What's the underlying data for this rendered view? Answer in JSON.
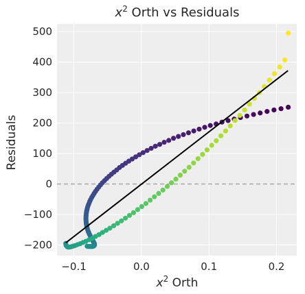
{
  "chart_data": {
    "type": "scatter",
    "title": "$x^2$ Orth vs Residuals",
    "title_parts": {
      "base": "x",
      "sup": "2",
      "rest": " Orth vs Residuals"
    },
    "xlabel": "$x^2$ Orth",
    "xlabel_parts": {
      "base": "x",
      "sup": "2",
      "rest": " Orth"
    },
    "ylabel": "Residuals",
    "xlim": [
      -0.125,
      0.23
    ],
    "ylim": [
      -235,
      525
    ],
    "xticks": [
      -0.1,
      0.0,
      0.1,
      0.2
    ],
    "xtick_labels": [
      "−0.1",
      "0.0",
      "0.1",
      "0.2"
    ],
    "yticks": [
      -200,
      -100,
      0,
      100,
      200,
      300,
      400,
      500
    ],
    "ytick_labels": [
      "−200",
      "−100",
      "0",
      "100",
      "200",
      "300",
      "400",
      "500"
    ],
    "grid": true,
    "colormap": "viridis",
    "series": [
      {
        "marker": "circle",
        "x": [
          0.2174,
          0.2067,
          0.1963,
          0.186,
          0.1758,
          0.166,
          0.1563,
          0.1467,
          0.1374,
          0.1283,
          0.1193,
          0.1106,
          0.102,
          0.0937,
          0.0855,
          0.0775,
          0.0697,
          0.0621,
          0.0547,
          0.0475,
          0.0405,
          0.0337,
          0.0271,
          0.0206,
          0.0144,
          0.0084,
          0.0025,
          -0.0031,
          -0.0085,
          -0.0137,
          -0.0187,
          -0.0235,
          -0.0281,
          -0.0325,
          -0.0367,
          -0.0407,
          -0.0445,
          -0.0481,
          -0.0515,
          -0.0547,
          -0.0578,
          -0.0606,
          -0.0632,
          -0.0657,
          -0.0679,
          -0.07,
          -0.0719,
          -0.0736,
          -0.0752,
          -0.0765,
          -0.0777,
          -0.0788,
          -0.0797,
          -0.0804,
          -0.081,
          -0.0815,
          -0.0818,
          -0.082,
          -0.0821,
          -0.0821,
          -0.082,
          -0.0818,
          -0.0816,
          -0.0812,
          -0.0808,
          -0.0803,
          -0.0798,
          -0.0792,
          -0.0786,
          -0.0779,
          -0.0772,
          -0.0765,
          -0.0758,
          -0.0751,
          -0.0744,
          -0.0737,
          -0.0731,
          -0.0725,
          -0.0719,
          -0.0714,
          -0.0709,
          -0.0705,
          -0.0701,
          -0.0698,
          -0.0696,
          -0.0695,
          -0.0695,
          -0.0696,
          -0.0698,
          -0.0701,
          -0.0705,
          -0.0711,
          -0.0717,
          -0.0725,
          -0.0735,
          -0.0746,
          -0.0758,
          -0.0772,
          -0.0787,
          -0.0804
        ],
        "y": [
          252,
          247,
          243,
          238,
          233,
          228,
          223,
          218,
          213,
          208,
          203,
          197,
          192,
          186,
          180,
          174,
          168,
          162,
          156,
          150,
          143,
          137,
          130,
          124,
          117,
          110,
          103,
          96,
          89,
          82,
          75,
          68,
          61,
          54,
          46,
          39,
          32,
          25,
          18,
          11,
          4,
          -3,
          -10,
          -17,
          -24,
          -31,
          -38,
          -44,
          -51,
          -57,
          -64,
          -70,
          -76,
          -82,
          -88,
          -94,
          -100,
          -105,
          -111,
          -116,
          -121,
          -126,
          -131,
          -136,
          -140,
          -145,
          -149,
          -153,
          -157,
          -160,
          -164,
          -167,
          -170,
          -173,
          -176,
          -179,
          -181,
          -184,
          -186,
          -188,
          -190,
          -192,
          -194,
          -195,
          -197,
          -198,
          -199,
          -200,
          -201,
          -202,
          -203,
          -204,
          -204,
          -205,
          -205,
          -205,
          -205,
          -205,
          -205,
          -204
        ]
      }
    ],
    "fit_line": {
      "x": [
        -0.112,
        0.217
      ],
      "y": [
        -193,
        372
      ]
    },
    "reference_line": {
      "y": 0,
      "style": "dashed"
    },
    "point_xy_pairs": [
      [
        -0.1121,
        -195
      ],
      [
        -0.1118,
        -200
      ],
      [
        -0.1112,
        -202
      ],
      [
        -0.1103,
        -205
      ],
      [
        -0.1088,
        -207
      ],
      [
        -0.1068,
        -207
      ],
      [
        -0.1044,
        -206
      ],
      [
        -0.1015,
        -204
      ],
      [
        -0.0983,
        -202
      ],
      [
        -0.0947,
        -199
      ],
      [
        -0.0908,
        -196
      ],
      [
        -0.0866,
        -192
      ],
      [
        -0.0822,
        -188
      ],
      [
        -0.0776,
        -183
      ],
      [
        -0.0728,
        -178
      ],
      [
        -0.0679,
        -172
      ],
      [
        -0.0628,
        -166
      ],
      [
        -0.0576,
        -159
      ],
      [
        -0.0522,
        -152
      ],
      [
        -0.0467,
        -145
      ],
      [
        -0.0411,
        -137
      ],
      [
        -0.0354,
        -129
      ],
      [
        -0.0296,
        -121
      ],
      [
        -0.0237,
        -112
      ],
      [
        -0.0177,
        -103
      ],
      [
        -0.0117,
        -94
      ],
      [
        -0.0056,
        -84
      ],
      [
        0.0005,
        -74
      ],
      [
        0.0067,
        -64
      ],
      [
        0.0129,
        -53
      ],
      [
        0.0192,
        -42
      ],
      [
        0.0255,
        -31
      ],
      [
        0.0318,
        -20
      ],
      [
        0.0382,
        -8
      ],
      [
        0.0446,
        4
      ],
      [
        0.051,
        16
      ],
      [
        0.0575,
        29
      ],
      [
        0.064,
        42
      ],
      [
        0.0706,
        55
      ],
      [
        0.0772,
        69
      ],
      [
        0.0838,
        83
      ],
      [
        0.0905,
        97
      ],
      [
        0.0972,
        112
      ],
      [
        0.104,
        127
      ],
      [
        0.1108,
        142
      ],
      [
        0.1177,
        158
      ],
      [
        0.1246,
        174
      ],
      [
        0.1316,
        191
      ],
      [
        0.1386,
        208
      ],
      [
        0.1457,
        225
      ],
      [
        0.1528,
        243
      ],
      [
        0.16,
        262
      ],
      [
        0.1673,
        281
      ],
      [
        0.1746,
        300
      ],
      [
        0.182,
        320
      ],
      [
        0.1895,
        341
      ],
      [
        0.197,
        362
      ],
      [
        0.2047,
        384
      ],
      [
        0.2124,
        407
      ],
      [
        0.2175,
        495
      ],
      [
        -0.1121,
        -190
      ],
      [
        -0.1116,
        -185
      ],
      [
        -0.1108,
        -180
      ],
      [
        -0.1097,
        -174
      ],
      [
        -0.1083,
        -167
      ],
      [
        -0.1067,
        -160
      ],
      [
        -0.1049,
        -152
      ],
      [
        -0.1029,
        -145
      ],
      [
        -0.1007,
        -137
      ],
      [
        -0.0983,
        -129
      ],
      [
        -0.0958,
        -121
      ],
      [
        -0.0931,
        -113
      ],
      [
        -0.0903,
        -105
      ],
      [
        -0.0873,
        -97
      ],
      [
        -0.0842,
        -89
      ],
      [
        -0.081,
        -81
      ],
      [
        -0.0776,
        -73
      ],
      [
        -0.0742,
        -65
      ],
      [
        -0.0706,
        -57
      ],
      [
        -0.0669,
        -49
      ],
      [
        -0.0631,
        -41
      ],
      [
        -0.0592,
        -33
      ],
      [
        -0.0551,
        -25
      ],
      [
        -0.051,
        -17
      ],
      [
        -0.0467,
        -9
      ],
      [
        -0.0423,
        -1
      ],
      [
        -0.0378,
        7
      ],
      [
        -0.0332,
        15
      ],
      [
        -0.0285,
        23
      ],
      [
        -0.0236,
        31
      ],
      [
        -0.0187,
        38
      ],
      [
        -0.0136,
        46
      ],
      [
        -0.0084,
        54
      ],
      [
        -0.0031,
        61
      ],
      [
        0.0023,
        69
      ],
      [
        0.0078,
        76
      ],
      [
        0.0135,
        83
      ],
      [
        0.0192,
        90
      ],
      [
        0.0251,
        97
      ],
      [
        0.0311,
        103
      ]
    ]
  }
}
